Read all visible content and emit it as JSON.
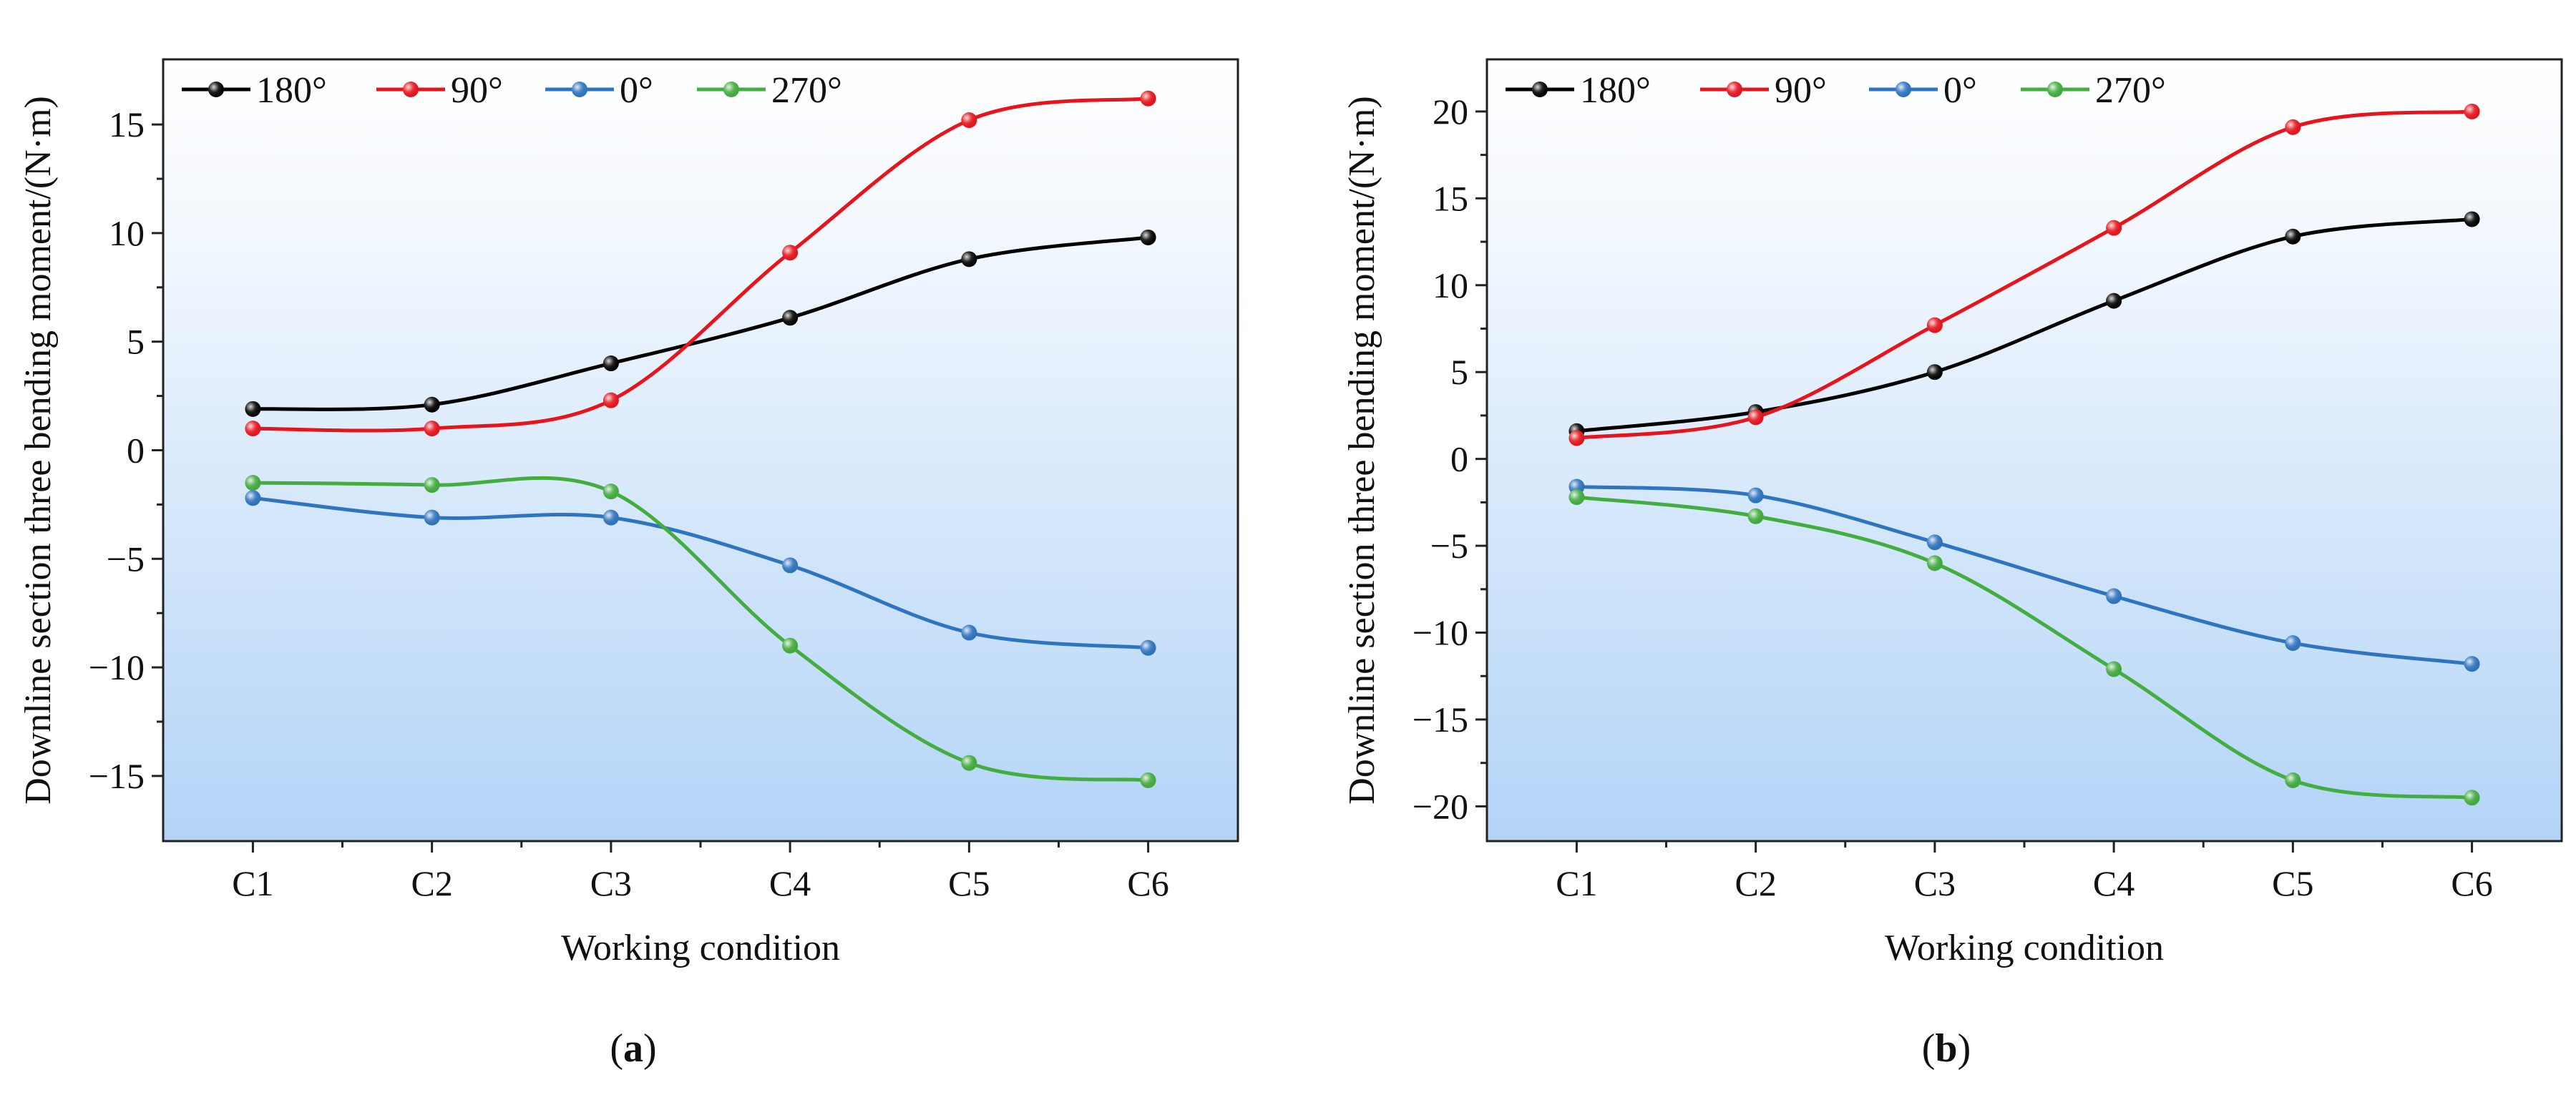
{
  "chart_data": [
    {
      "type": "line",
      "panel": "a",
      "panel_label_open": "(",
      "panel_label_letter": "a",
      "panel_label_close": ")",
      "title": "",
      "xlabel": "Working condition",
      "ylabel": "Downline section three bending moment/(N·m)",
      "categories": [
        "C1",
        "C2",
        "C3",
        "C4",
        "C5",
        "C6"
      ],
      "ylim": [
        -18,
        18
      ],
      "yticks": [
        -15,
        -10,
        -5,
        0,
        5,
        10,
        15
      ],
      "ytick_labels": [
        "−15",
        "−10",
        "−5",
        "0",
        "5",
        "10",
        "15"
      ],
      "grid": false,
      "legend_position": "top-left",
      "series": [
        {
          "name": "180°",
          "color": "#000000",
          "values": [
            1.9,
            2.1,
            4.0,
            6.1,
            8.8,
            9.8
          ]
        },
        {
          "name": "90°",
          "color": "#e8141b",
          "values": [
            1.0,
            1.0,
            2.3,
            9.1,
            15.2,
            16.2
          ]
        },
        {
          "name": "0°",
          "color": "#2f74c0",
          "values": [
            -2.2,
            -3.1,
            -3.1,
            -5.3,
            -8.4,
            -9.1
          ]
        },
        {
          "name": "270°",
          "color": "#43ad3f",
          "values": [
            -1.5,
            -1.6,
            -1.9,
            -9.0,
            -14.4,
            -15.2
          ]
        }
      ]
    },
    {
      "type": "line",
      "panel": "b",
      "panel_label_open": "(",
      "panel_label_letter": "b",
      "panel_label_close": ")",
      "title": "",
      "xlabel": "Working condition",
      "ylabel": "Downline section three bending moment/(N·m)",
      "categories": [
        "C1",
        "C2",
        "C3",
        "C4",
        "C5",
        "C6"
      ],
      "ylim": [
        -22,
        23
      ],
      "yticks": [
        -20,
        -15,
        -10,
        -5,
        0,
        5,
        10,
        15,
        20
      ],
      "ytick_labels": [
        "−20",
        "−15",
        "−10",
        "−5",
        "0",
        "5",
        "10",
        "15",
        "20"
      ],
      "grid": false,
      "legend_position": "top-left",
      "series": [
        {
          "name": "180°",
          "color": "#000000",
          "values": [
            1.6,
            2.7,
            5.0,
            9.1,
            12.8,
            13.8
          ]
        },
        {
          "name": "90°",
          "color": "#e8141b",
          "values": [
            1.2,
            2.4,
            7.7,
            13.3,
            19.1,
            20.0
          ]
        },
        {
          "name": "0°",
          "color": "#2f74c0",
          "values": [
            -1.6,
            -2.1,
            -4.8,
            -7.9,
            -10.6,
            -11.8
          ]
        },
        {
          "name": "270°",
          "color": "#43ad3f",
          "values": [
            -2.2,
            -3.3,
            -6.0,
            -12.1,
            -18.5,
            -19.5
          ]
        }
      ]
    }
  ]
}
